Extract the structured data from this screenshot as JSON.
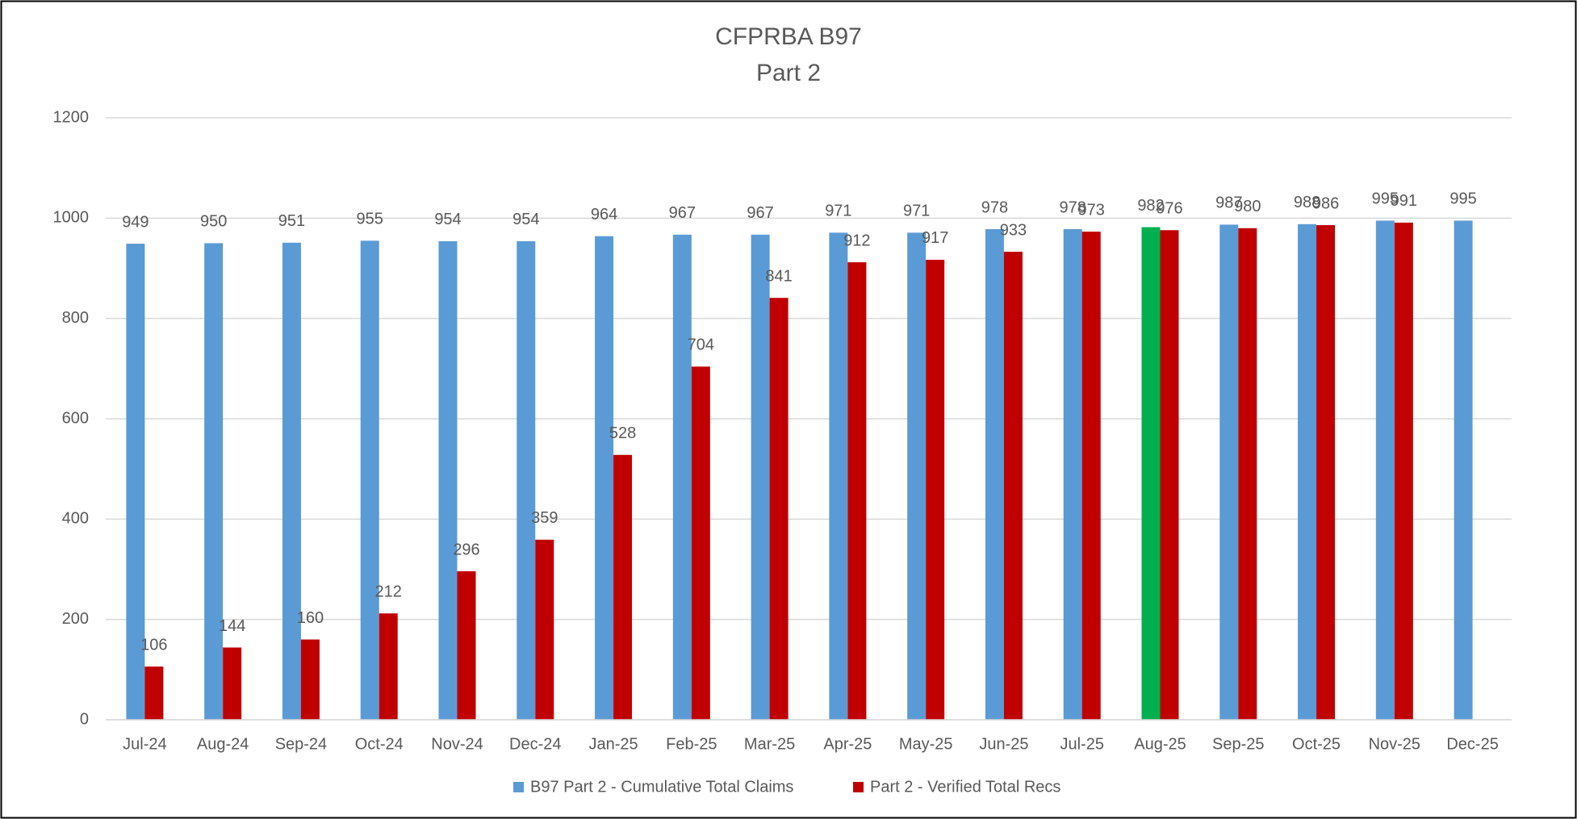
{
  "chart_data": {
    "type": "bar",
    "title": "CFPRBA B97",
    "subtitle": "Part 2",
    "categories": [
      "Jul-24",
      "Aug-24",
      "Sep-24",
      "Oct-24",
      "Nov-24",
      "Dec-24",
      "Jan-25",
      "Feb-25",
      "Mar-25",
      "Apr-25",
      "May-25",
      "Jun-25",
      "Jul-25",
      "Aug-25",
      "Sep-25",
      "Oct-25",
      "Nov-25",
      "Dec-25"
    ],
    "series": [
      {
        "name": "B97 Part 2 - Cumulative Total Claims",
        "color": "#5b9bd5",
        "colors": [
          "#5b9bd5",
          "#5b9bd5",
          "#5b9bd5",
          "#5b9bd5",
          "#5b9bd5",
          "#5b9bd5",
          "#5b9bd5",
          "#5b9bd5",
          "#5b9bd5",
          "#5b9bd5",
          "#5b9bd5",
          "#5b9bd5",
          "#5b9bd5",
          "#00b050",
          "#5b9bd5",
          "#5b9bd5",
          "#5b9bd5",
          "#5b9bd5"
        ],
        "values": [
          949,
          950,
          951,
          955,
          954,
          954,
          964,
          967,
          967,
          971,
          971,
          978,
          978,
          982,
          987,
          988,
          995,
          995
        ]
      },
      {
        "name": "Part 2 - Verified Total Recs",
        "color": "#c00000",
        "values": [
          106,
          144,
          160,
          212,
          296,
          359,
          528,
          704,
          841,
          912,
          917,
          933,
          973,
          976,
          980,
          986,
          991,
          null
        ]
      }
    ],
    "ylim": [
      0,
      1200
    ],
    "yticks": [
      0,
      200,
      400,
      600,
      800,
      1000,
      1200
    ],
    "grid": true,
    "legend": "bottom"
  }
}
